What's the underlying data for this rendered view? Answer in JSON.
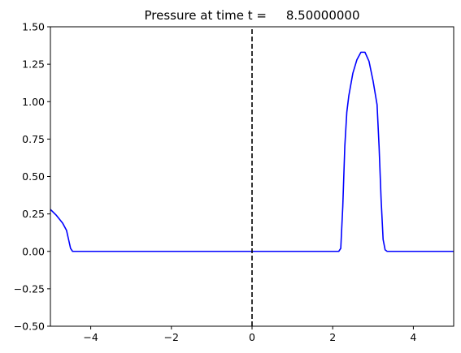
{
  "chart_data": {
    "type": "line",
    "title": "Pressure at time t =     8.50000000",
    "xlabel": "",
    "ylabel": "",
    "xlim": [
      -5,
      5
    ],
    "ylim": [
      -0.5,
      1.5
    ],
    "grid": false,
    "xticks": [
      -4,
      -2,
      0,
      2,
      4
    ],
    "xtick_labels": [
      "−4",
      "−2",
      "0",
      "2",
      "4"
    ],
    "yticks": [
      -0.5,
      -0.25,
      0.0,
      0.25,
      0.5,
      0.75,
      1.0,
      1.25,
      1.5
    ],
    "ytick_labels": [
      "−0.50",
      "−0.25",
      "0.00",
      "0.25",
      "0.50",
      "0.75",
      "1.00",
      "1.25",
      "1.50"
    ],
    "series": [
      {
        "color": "#0000ff",
        "style": "solid",
        "x": [
          -5.0,
          -4.85,
          -4.7,
          -4.6,
          -4.55,
          -4.5,
          -4.45,
          -4.4,
          2.15,
          2.2,
          2.25,
          2.3,
          2.35,
          2.4,
          2.5,
          2.6,
          2.7,
          2.8,
          2.9,
          3.0,
          3.1,
          3.15,
          3.2,
          3.25,
          3.3,
          3.35,
          3.5,
          5.0
        ],
        "y": [
          0.28,
          0.24,
          0.19,
          0.14,
          0.08,
          0.02,
          0.0,
          0.0,
          0.0,
          0.02,
          0.3,
          0.7,
          0.93,
          1.04,
          1.19,
          1.28,
          1.33,
          1.33,
          1.27,
          1.14,
          0.98,
          0.7,
          0.35,
          0.08,
          0.01,
          0.0,
          0.0,
          0.0
        ]
      },
      {
        "color": "#000000",
        "style": "dashed",
        "x": [
          0,
          0
        ],
        "y": [
          -0.5,
          1.5
        ]
      }
    ]
  }
}
